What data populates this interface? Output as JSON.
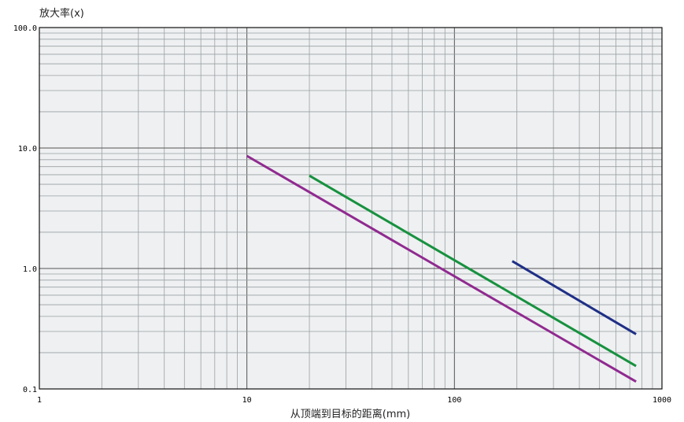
{
  "chart_data": {
    "type": "line",
    "title": "",
    "ylabel": "放大率(x)",
    "xlabel": "从顶端到目标的距离(mm)",
    "x_scale": "log",
    "y_scale": "log",
    "xlim": [
      1,
      1000
    ],
    "ylim": [
      0.1,
      100
    ],
    "x_ticks": [
      "1",
      "10",
      "100",
      "1000"
    ],
    "y_ticks": [
      "0.1",
      "1.0",
      "10.0",
      "100.0"
    ],
    "grid": true,
    "legend": "none",
    "colors": {
      "background": "#eef0f1",
      "grid": "#9aa0a4",
      "frame": "#111111"
    },
    "series": [
      {
        "color": "#902a90",
        "x": [
          10,
          750
        ],
        "y": [
          8.6,
          0.115
        ]
      },
      {
        "color": "#17913f",
        "x": [
          20,
          750
        ],
        "y": [
          5.9,
          0.155
        ]
      },
      {
        "color": "#1f2f86",
        "x": [
          190,
          750
        ],
        "y": [
          1.15,
          0.285
        ]
      }
    ]
  }
}
